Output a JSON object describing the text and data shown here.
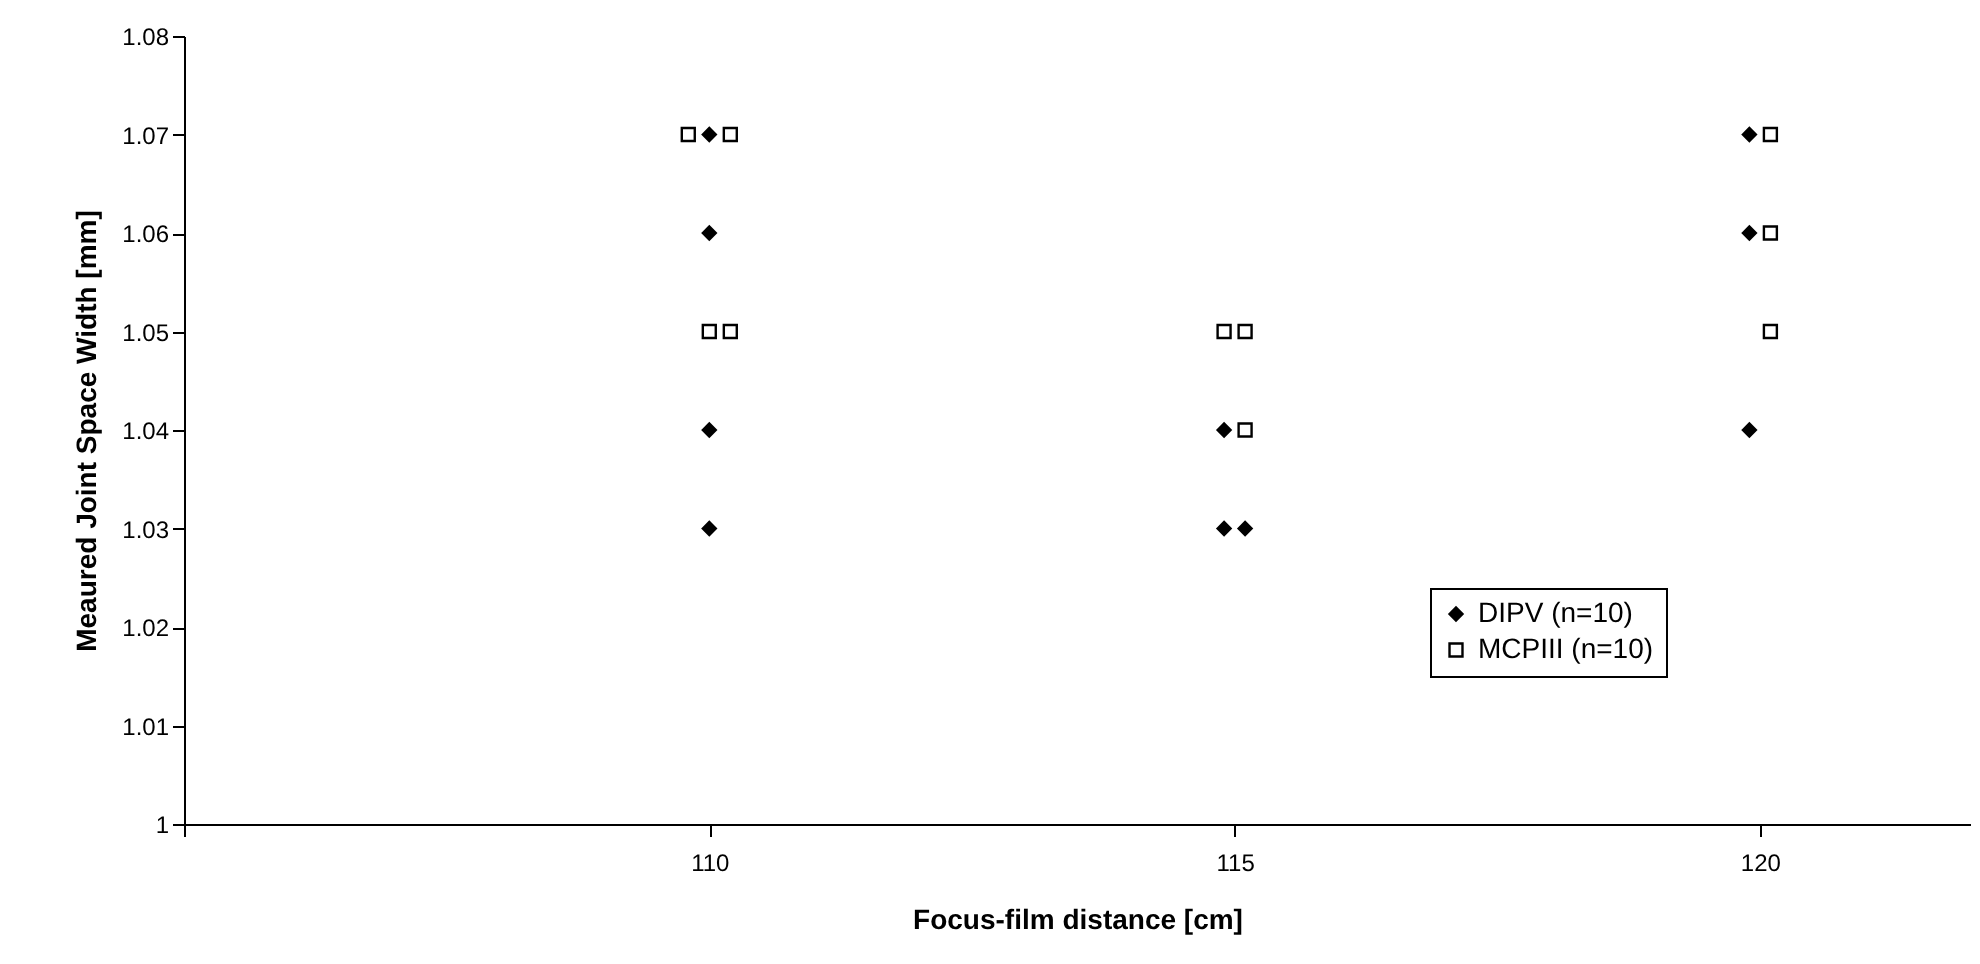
{
  "chart_data": {
    "type": "scatter",
    "xlabel": "Focus-film distance [cm]",
    "ylabel": "Meaured Joint Space Width [mm]",
    "xlim": [
      105,
      122
    ],
    "xticks": [
      {
        "value": 105,
        "label": null
      },
      110,
      115,
      120
    ],
    "ylim": [
      1,
      1.08
    ],
    "yticks": [
      1,
      1.01,
      1.02,
      1.03,
      1.04,
      1.05,
      1.06,
      1.07,
      1.08
    ],
    "grid": false,
    "legend": "bottom right",
    "series": [
      {
        "name": "DIPV (n=10)",
        "color": "#000000",
        "marker": "diamond",
        "x": [
          110,
          110,
          110,
          110,
          114.9,
          114.9,
          115.1,
          119.9,
          119.9,
          119.9
        ],
        "values": [
          1.07,
          1.06,
          1.04,
          1.03,
          1.04,
          1.03,
          1.03,
          1.07,
          1.06,
          1.04
        ]
      },
      {
        "name": "MCPIII (n=10)",
        "color": "#000000",
        "marker": "square",
        "x": [
          109.8,
          110.2,
          110,
          110.2,
          114.9,
          115.1,
          115.1,
          120.1,
          120.1,
          120.1
        ],
        "values": [
          1.07,
          1.07,
          1.05,
          1.05,
          1.05,
          1.05,
          1.04,
          1.07,
          1.06,
          1.05
        ]
      }
    ]
  }
}
